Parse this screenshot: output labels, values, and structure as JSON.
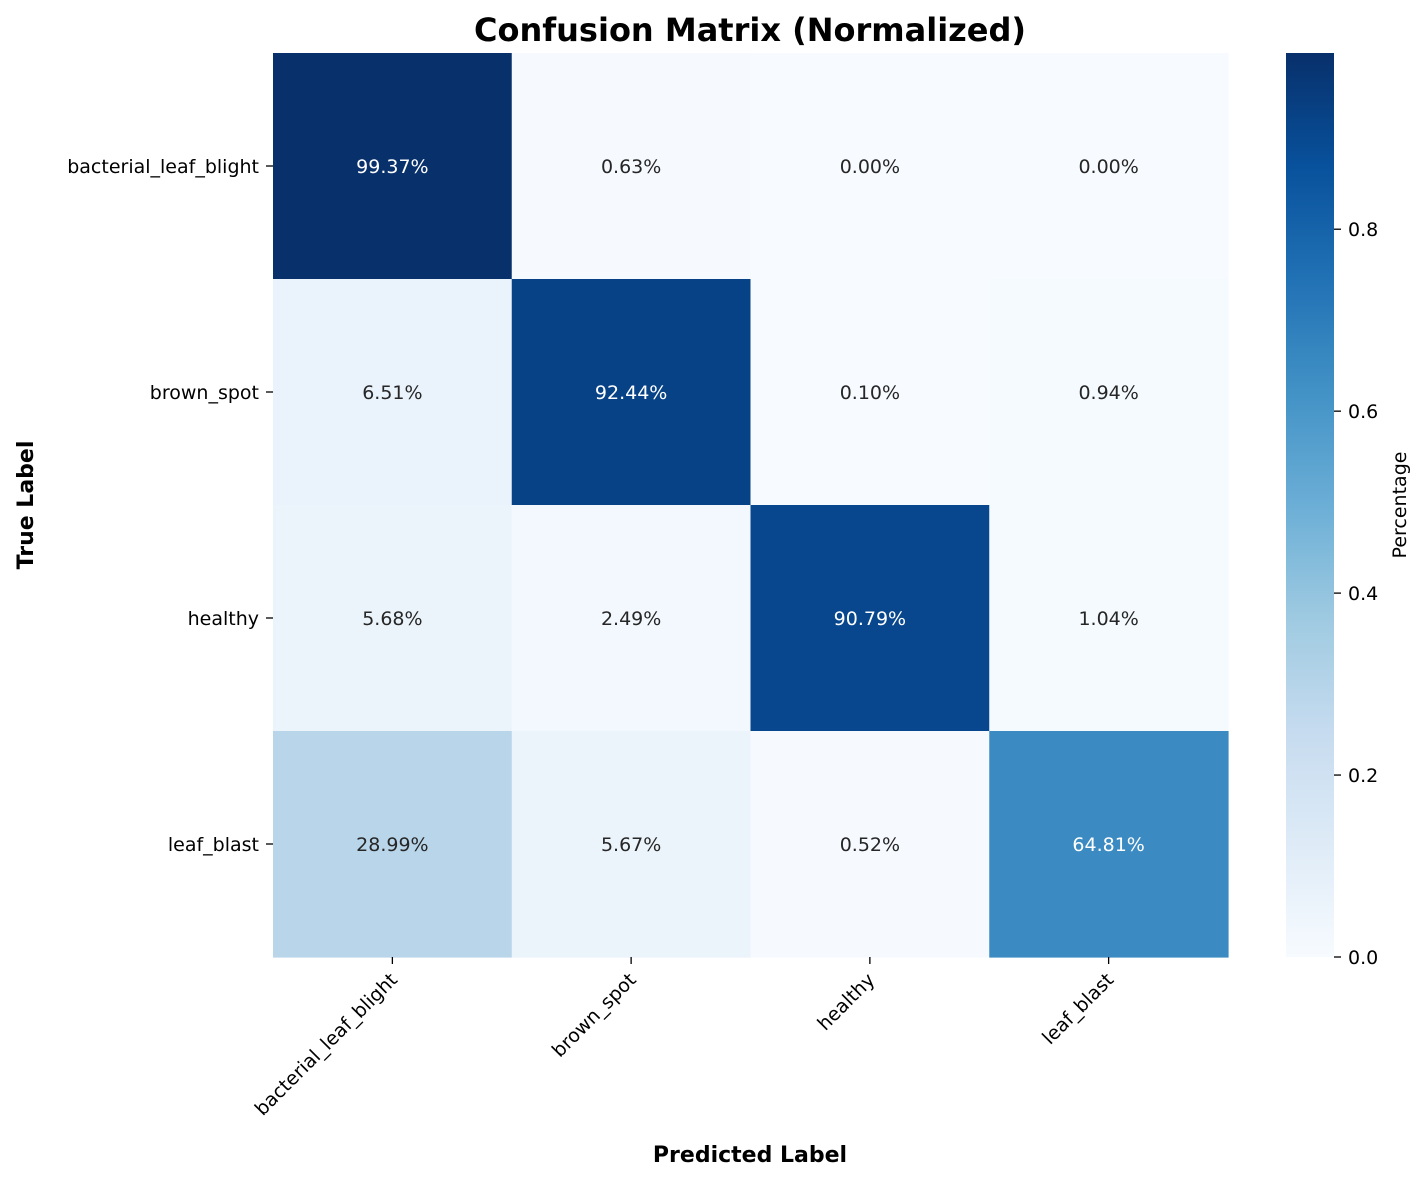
{
  "chart_data": {
    "type": "heatmap",
    "title": "Confusion Matrix (Normalized)",
    "xlabel": "Predicted Label",
    "ylabel": "True Label",
    "x_categories": [
      "bacterial_leaf_blight",
      "brown_spot",
      "healthy",
      "leaf_blast"
    ],
    "y_categories": [
      "bacterial_leaf_blight",
      "brown_spot",
      "healthy",
      "leaf_blast"
    ],
    "values": [
      [
        0.9937,
        0.0063,
        0.0,
        0.0
      ],
      [
        0.0651,
        0.9244,
        0.001,
        0.0094
      ],
      [
        0.0568,
        0.0249,
        0.9079,
        0.0104
      ],
      [
        0.2899,
        0.0567,
        0.0052,
        0.6481
      ]
    ],
    "cell_labels": [
      [
        "99.37%",
        "0.63%",
        "0.00%",
        "0.00%"
      ],
      [
        "6.51%",
        "92.44%",
        "0.10%",
        "0.94%"
      ],
      [
        "5.68%",
        "2.49%",
        "90.79%",
        "1.04%"
      ],
      [
        "28.99%",
        "5.67%",
        "0.52%",
        "64.81%"
      ]
    ],
    "colorbar": {
      "label": "Percentage",
      "range": [
        0,
        0.9937
      ],
      "ticks": [
        "0.0",
        "0.2",
        "0.4",
        "0.6",
        "0.8"
      ],
      "tick_values": [
        0.0,
        0.2,
        0.4,
        0.6,
        0.8
      ],
      "colormap": "Blues"
    },
    "colors": {
      "text_dark": "#262626",
      "text_light": "#ffffff"
    }
  }
}
